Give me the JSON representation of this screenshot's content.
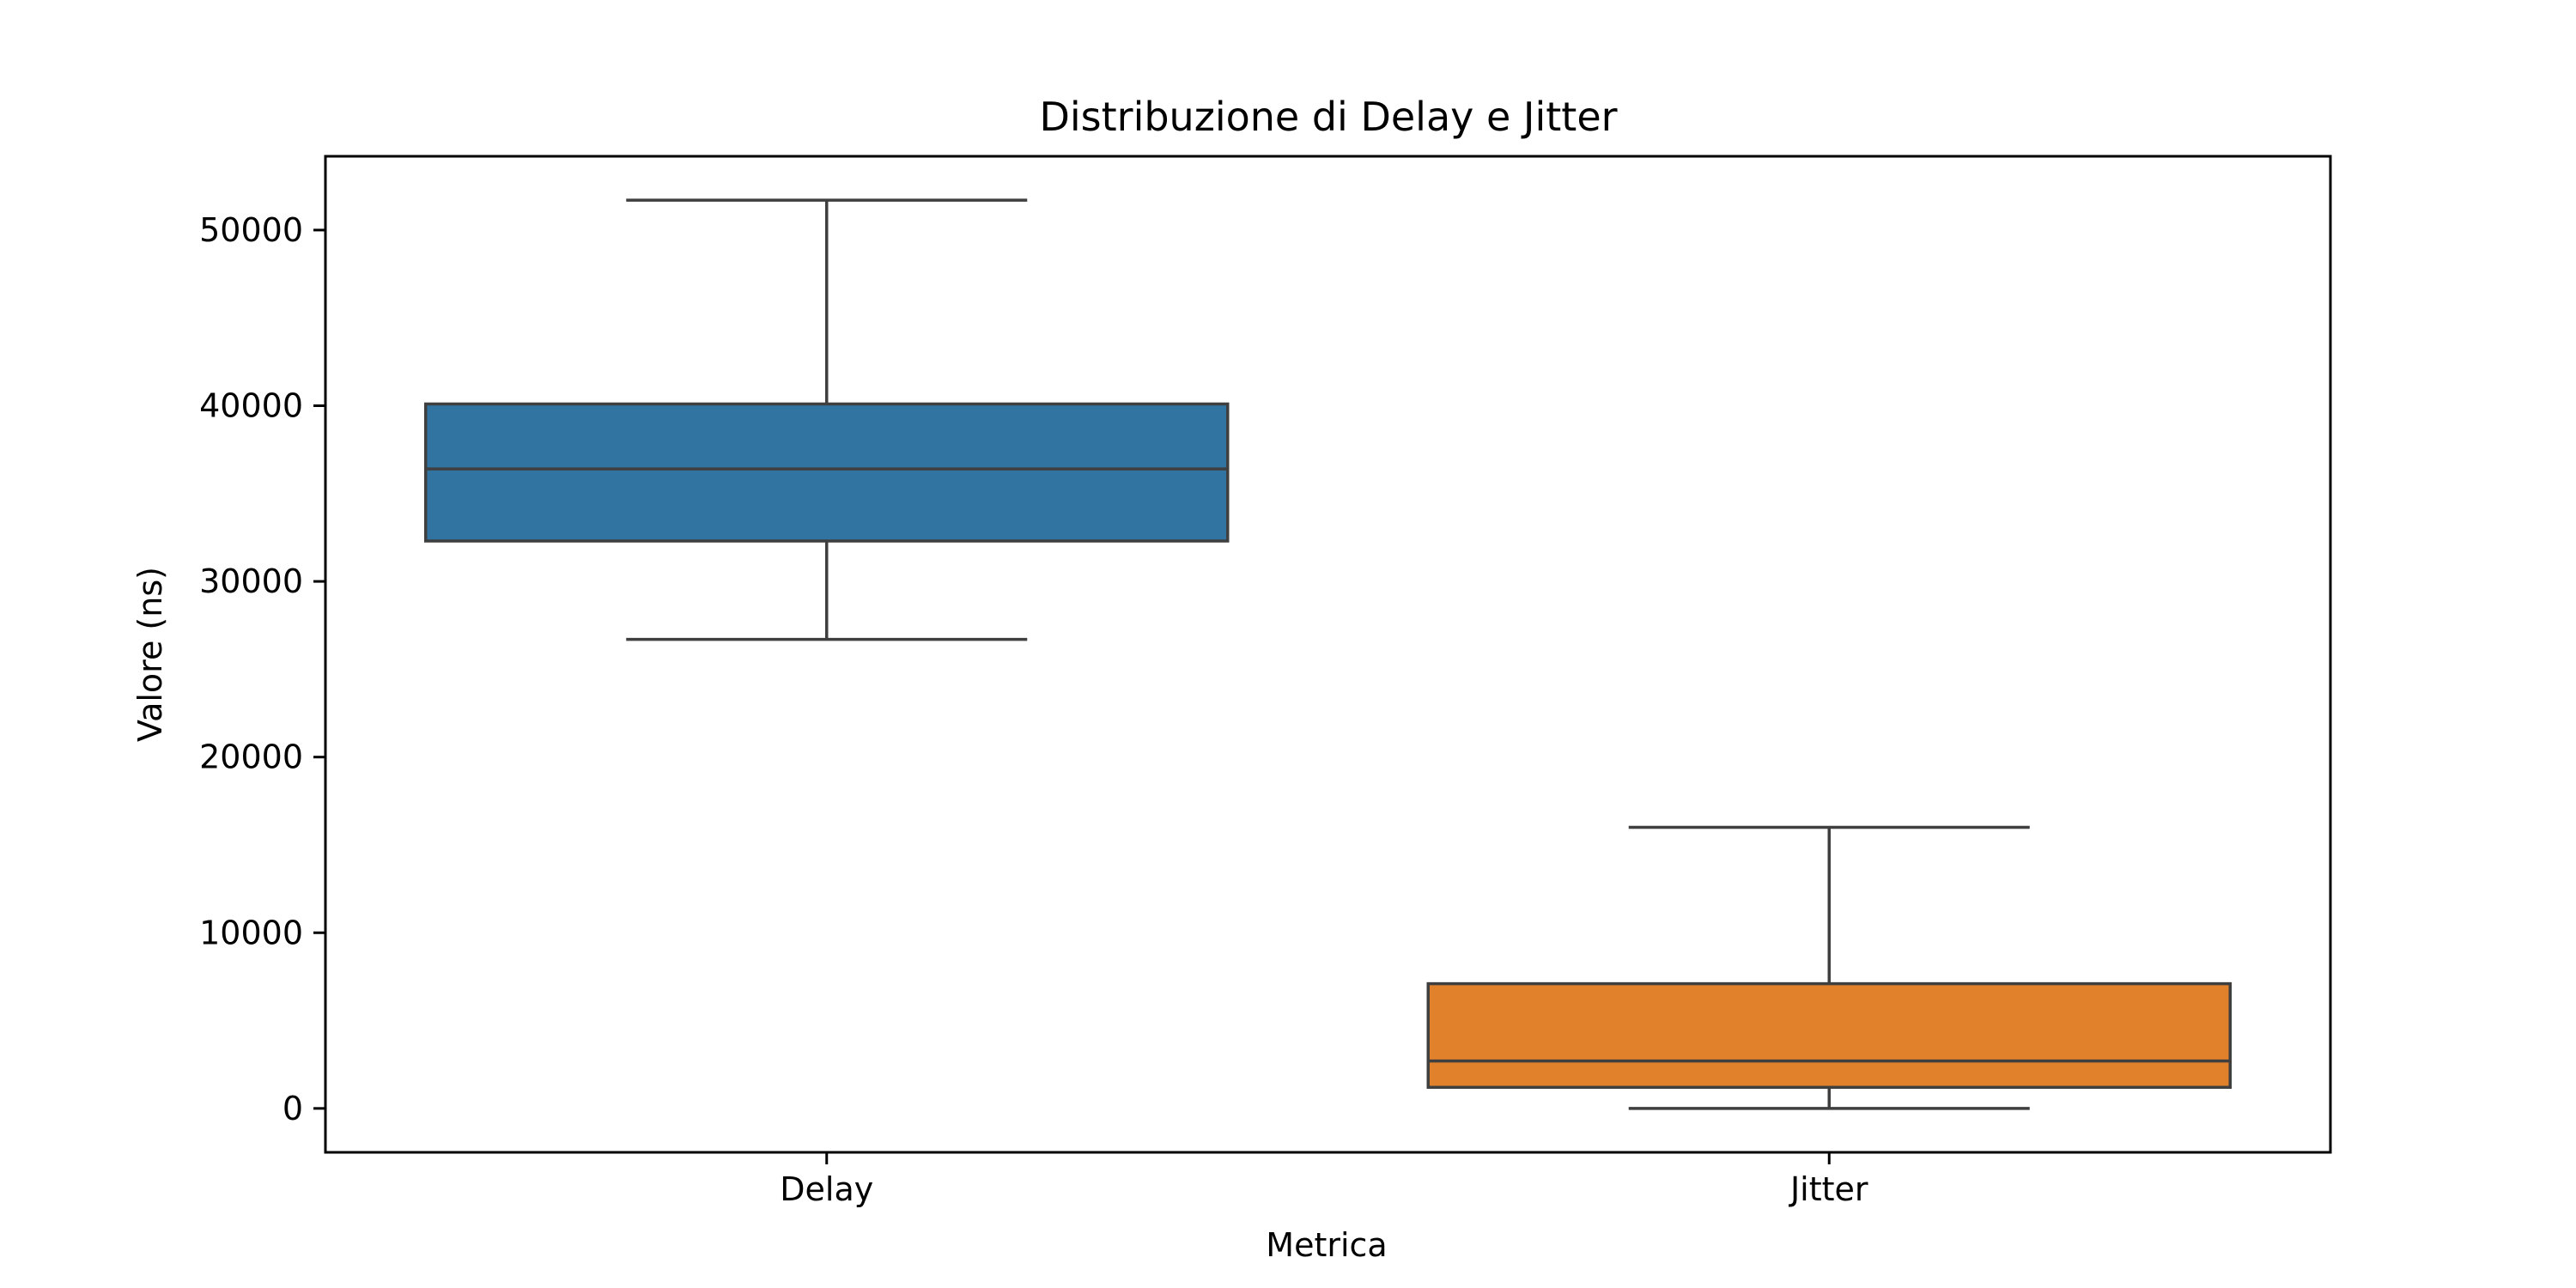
{
  "chart_data": {
    "type": "box",
    "title": "Distribuzione di Delay e Jitter",
    "xlabel": "Metrica",
    "ylabel": "Valore (ns)",
    "categories": [
      "Delay",
      "Jitter"
    ],
    "ylim": [
      -2500,
      54200
    ],
    "yticks": [
      0,
      10000,
      20000,
      30000,
      40000,
      50000
    ],
    "ytick_labels": [
      "0",
      "10000",
      "20000",
      "30000",
      "40000",
      "50000"
    ],
    "boxes": [
      {
        "category": "Delay",
        "whisker_low": 26700,
        "q1": 32300,
        "median": 36400,
        "q3": 40100,
        "whisker_high": 51700,
        "color": "#3274a1"
      },
      {
        "category": "Jitter",
        "whisker_low": 0,
        "q1": 1200,
        "median": 2700,
        "q3": 7100,
        "whisker_high": 16000,
        "color": "#e1812c"
      }
    ],
    "grid": false,
    "legend": "none"
  }
}
